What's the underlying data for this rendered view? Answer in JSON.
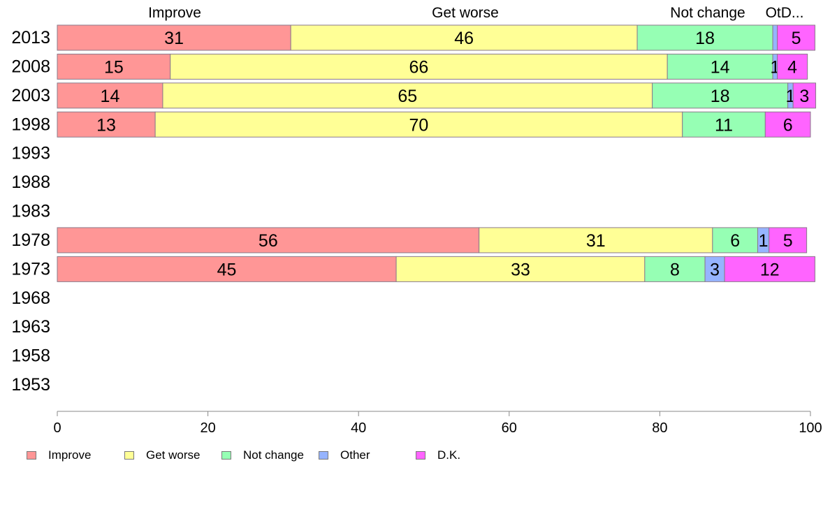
{
  "chart_data": {
    "type": "bar",
    "orientation": "horizontal",
    "stacked": true,
    "categories": [
      "2013",
      "2008",
      "2003",
      "1998",
      "1993",
      "1988",
      "1983",
      "1978",
      "1973",
      "1968",
      "1963",
      "1958",
      "1953"
    ],
    "series": [
      {
        "name": "Improve",
        "color": "#FF9696",
        "values": [
          31,
          15,
          14,
          13,
          null,
          null,
          null,
          56,
          45,
          null,
          null,
          null,
          null
        ]
      },
      {
        "name": "Get worse",
        "color": "#FFFF96",
        "values": [
          46,
          66,
          65,
          70,
          null,
          null,
          null,
          31,
          33,
          null,
          null,
          null,
          null
        ]
      },
      {
        "name": "Not change",
        "color": "#96FFB4",
        "values": [
          18,
          14,
          18,
          11,
          null,
          null,
          null,
          6,
          8,
          null,
          null,
          null,
          null
        ]
      },
      {
        "name": "Other",
        "color": "#96B4FF",
        "values": [
          0.6,
          0.6,
          0.7,
          0,
          null,
          null,
          null,
          1.5,
          2.6,
          null,
          null,
          null,
          null
        ]
      },
      {
        "name": "D.K.",
        "color": "#FF64FF",
        "values": [
          5,
          4,
          3,
          6,
          null,
          null,
          null,
          5,
          12,
          null,
          null,
          null,
          null
        ]
      }
    ],
    "data_labels": [
      [
        "31",
        "46",
        "18",
        "",
        "5"
      ],
      [
        "15",
        "66",
        "14",
        "1",
        "4"
      ],
      [
        "14",
        "65",
        "18",
        "1",
        "3"
      ],
      [
        "13",
        "70",
        "11",
        "",
        "6"
      ],
      [],
      [],
      [],
      [
        "56",
        "31",
        "6",
        "1",
        "5"
      ],
      [
        "45",
        "33",
        "8",
        "3",
        "12"
      ],
      [],
      [],
      [],
      []
    ],
    "top_labels": [
      "Improve",
      "Get worse",
      "Not change",
      "OtD..."
    ],
    "xlim": [
      0,
      100
    ],
    "x_ticks": [
      "0",
      "20",
      "40",
      "60",
      "80",
      "100"
    ],
    "title": "",
    "xlabel": "",
    "ylabel": "",
    "grid": false,
    "legend_position": "bottom-left"
  },
  "legend": {
    "items": [
      {
        "label": "Improve",
        "color": "#FF9696"
      },
      {
        "label": "Get worse",
        "color": "#FFFF96"
      },
      {
        "label": "Not change",
        "color": "#96FFB4"
      },
      {
        "label": "Other",
        "color": "#96B4FF"
      },
      {
        "label": "D.K.",
        "color": "#FF64FF"
      }
    ]
  }
}
